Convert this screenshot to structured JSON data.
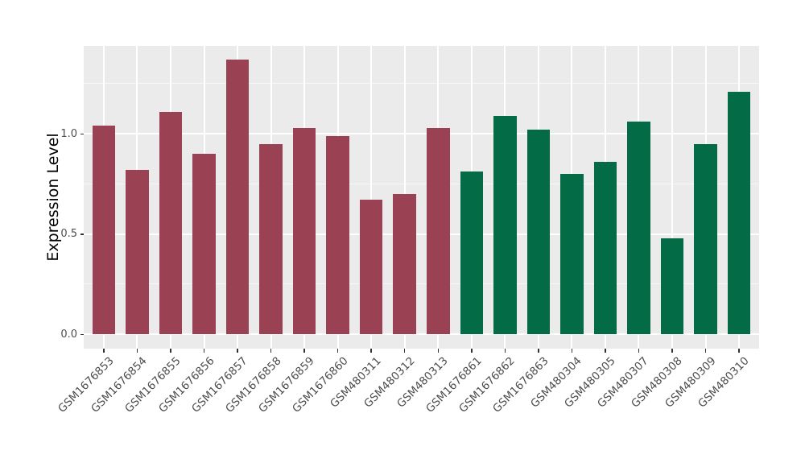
{
  "chart_data": {
    "type": "bar",
    "title": "",
    "xlabel": "",
    "ylabel": "Expression Level",
    "categories": [
      "GSM1676853",
      "GSM1676854",
      "GSM1676855",
      "GSM1676856",
      "GSM1676857",
      "GSM1676858",
      "GSM1676859",
      "GSM1676860",
      "GSM480311",
      "GSM480312",
      "GSM480313",
      "GSM1676861",
      "GSM1676862",
      "GSM1676863",
      "GSM480304",
      "GSM480305",
      "GSM480307",
      "GSM480308",
      "GSM480309",
      "GSM480310"
    ],
    "values": [
      1.04,
      0.82,
      1.11,
      0.9,
      1.37,
      0.95,
      1.03,
      0.99,
      0.67,
      0.7,
      1.03,
      0.81,
      1.09,
      1.02,
      0.8,
      0.86,
      1.06,
      0.48,
      0.95,
      1.21
    ],
    "bar_colors": [
      "#9A4253",
      "#9A4253",
      "#9A4253",
      "#9A4253",
      "#9A4253",
      "#9A4253",
      "#9A4253",
      "#9A4253",
      "#9A4253",
      "#9A4253",
      "#9A4253",
      "#046B47",
      "#046B47",
      "#046B47",
      "#046B47",
      "#046B47",
      "#046B47",
      "#046B47",
      "#046B47",
      "#046B47"
    ],
    "group_split_index": 11,
    "palette": {
      "group1": "#9A4253",
      "group2": "#046B47"
    },
    "yticks": {
      "values": [
        0.0,
        0.5,
        1.0
      ],
      "labels": [
        "0.0",
        "0.5",
        "1.0"
      ]
    },
    "minor_yticks": [
      0.25,
      0.75,
      1.25
    ],
    "ylim": [
      -0.072,
      1.438
    ],
    "grid": true,
    "legend": "none",
    "x_label_angle": -45,
    "panel_bg": "#EBEBEB",
    "grid_color": "#FFFFFF",
    "axis_text_color": "#4D4D4D",
    "axis_title_color": "#000000"
  }
}
